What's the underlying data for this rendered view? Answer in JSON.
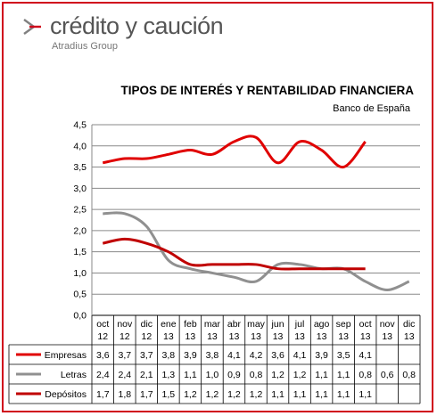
{
  "brand": {
    "name": "crédito y caución",
    "sub": "Atradius Group",
    "accent": "#d0021b",
    "mark_color": "#808080"
  },
  "chart_data": {
    "type": "line",
    "title": "TIPOS DE INTERÉS Y RENTABILIDAD FINANCIERA",
    "subtitle": "Banco de España",
    "categories_top": [
      "oct",
      "nov",
      "dic",
      "ene",
      "feb",
      "mar",
      "abr",
      "may",
      "jun",
      "jul",
      "ago",
      "sep",
      "oct",
      "nov",
      "dic"
    ],
    "categories_bottom": [
      "12",
      "12",
      "12",
      "13",
      "13",
      "13",
      "13",
      "13",
      "13",
      "13",
      "13",
      "13",
      "13",
      "13",
      "13"
    ],
    "ylim": [
      0,
      4.5
    ],
    "yticks": [
      "0,0",
      "0,5",
      "1,0",
      "1,5",
      "2,0",
      "2,5",
      "3,0",
      "3,5",
      "4,0",
      "4,5"
    ],
    "grid": true,
    "series": [
      {
        "name": "Empresas",
        "color": "#e00000",
        "values": [
          3.6,
          3.7,
          3.7,
          3.8,
          3.9,
          3.8,
          4.1,
          4.2,
          3.6,
          4.1,
          3.9,
          3.5,
          4.1,
          null,
          null
        ],
        "labels": [
          "3,6",
          "3,7",
          "3,7",
          "3,8",
          "3,9",
          "3,8",
          "4,1",
          "4,2",
          "3,6",
          "4,1",
          "3,9",
          "3,5",
          "4,1",
          "",
          ""
        ]
      },
      {
        "name": "Letras",
        "color": "#909090",
        "values": [
          2.4,
          2.4,
          2.1,
          1.3,
          1.1,
          1.0,
          0.9,
          0.8,
          1.2,
          1.2,
          1.1,
          1.1,
          0.8,
          0.6,
          0.8
        ],
        "labels": [
          "2,4",
          "2,4",
          "2,1",
          "1,3",
          "1,1",
          "1,0",
          "0,9",
          "0,8",
          "1,2",
          "1,2",
          "1,1",
          "1,1",
          "0,8",
          "0,6",
          "0,8"
        ]
      },
      {
        "name": "Depósitos",
        "color": "#c00000",
        "values": [
          1.7,
          1.8,
          1.7,
          1.5,
          1.2,
          1.2,
          1.2,
          1.2,
          1.1,
          1.1,
          1.1,
          1.1,
          1.1,
          null,
          null
        ],
        "labels": [
          "1,7",
          "1,8",
          "1,7",
          "1,5",
          "1,2",
          "1,2",
          "1,2",
          "1,2",
          "1,1",
          "1,1",
          "1,1",
          "1,1",
          "1,1",
          "",
          ""
        ]
      }
    ]
  }
}
